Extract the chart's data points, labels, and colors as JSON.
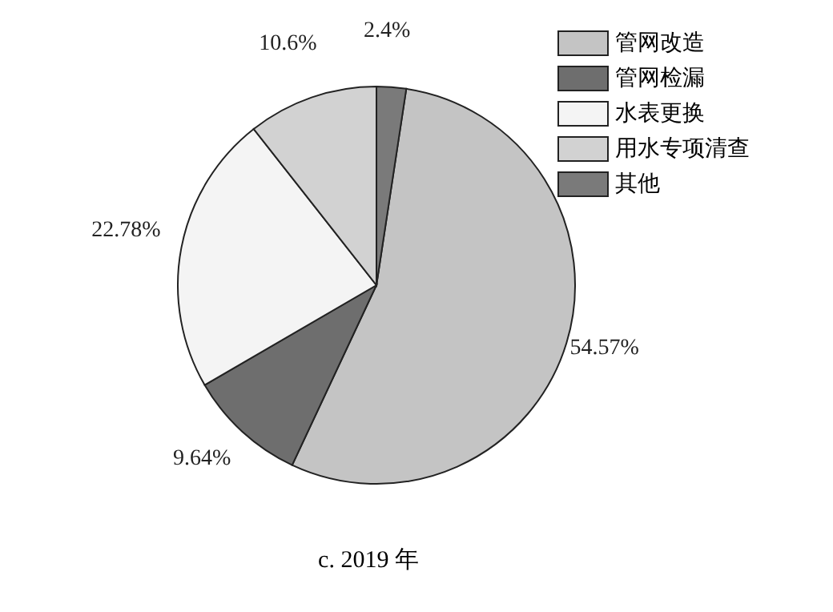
{
  "chart_data": {
    "type": "pie",
    "title": "c. 2019 年",
    "categories": [
      "管网改造",
      "管网检漏",
      "水表更换",
      "用水专项清查",
      "其他"
    ],
    "values": [
      54.57,
      9.64,
      22.78,
      10.6,
      2.4
    ],
    "value_labels": [
      "54.57%",
      "9.64%",
      "22.78%",
      "10.6%",
      "2.4%"
    ],
    "colors": [
      "#c4c4c4",
      "#6e6e6e",
      "#f4f4f4",
      "#d2d2d2",
      "#7a7a7a"
    ],
    "legend": "top right"
  }
}
